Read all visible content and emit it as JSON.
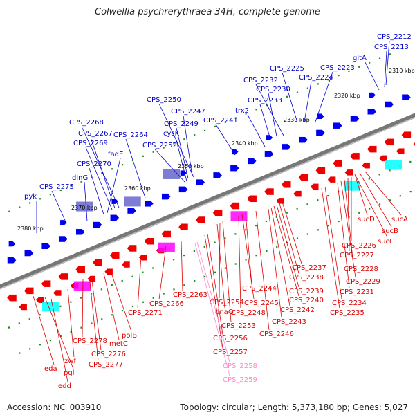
{
  "title": "Colwellia psychrerythraea 34H, complete genome",
  "footer": {
    "accession": "Accession: NC_003910",
    "summary": "Topology: circular; Length: 5,373,180 bp; Genes: 5,027"
  },
  "colors": {
    "forward_label": "#0000cc",
    "reverse_label": "#dd0000",
    "pseudo_label": "#ff88cc",
    "forward_gene": "#0000ee",
    "reverse_gene": "#ee0000",
    "backbone": "#777777",
    "tick": "#228822"
  },
  "kb_ticks": [
    "2310 kbp",
    "2320 kbp",
    "2330 kbp",
    "2340 kbp",
    "2350 kbp",
    "2360 kbp",
    "2370 kbp",
    "2380 kbp"
  ],
  "forward_genes": [
    "CPS_2212",
    "CPS_2213",
    "gltA",
    "CPS_2223",
    "CPS_2224",
    "CPS_2225",
    "CPS_2232",
    "CPS_2230",
    "CPS_2233",
    "trx2",
    "CPS_2241",
    "CPS_2250",
    "CPS_2247",
    "CPS_2249",
    "cysK",
    "CPS_2252",
    "CPS_2264",
    "CPS_2268",
    "CPS_2267",
    "CPS_2269",
    "fadE",
    "CPS_2270",
    "dinG",
    "CPS_2275",
    "pyk"
  ],
  "reverse_genes": [
    "sucA",
    "sucD",
    "sucB",
    "sucC",
    "CPS_2226",
    "CPS_2227",
    "CPS_2228",
    "CPS_2229",
    "CPS_2231",
    "CPS_2234",
    "CPS_2235",
    "CPS_2237",
    "CPS_2238",
    "CPS_2239",
    "CPS_2240",
    "CPS_2242",
    "CPS_2243",
    "CPS_2244",
    "CPS_2245",
    "CPS_2248",
    "CPS_2246",
    "CPS_2253",
    "CPS_2254",
    "dnaQ",
    "CPS_2256",
    "CPS_2257",
    "CPS_2263",
    "CPS_2266",
    "CPS_2271",
    "polB",
    "metC",
    "CPS_2278",
    "CPS_2276",
    "CPS_2277",
    "zwf",
    "eda",
    "pgl",
    "edd"
  ],
  "pseudo_genes": [
    "CPS_2258",
    "CPS_2259"
  ]
}
